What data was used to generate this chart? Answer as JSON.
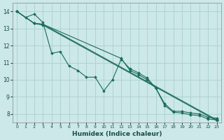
{
  "xlabel": "Humidex (Indice chaleur)",
  "ylabel": "",
  "bg_color": "#cce8e8",
  "grid_color": "#aacfcf",
  "line_color": "#1a6b5a",
  "xlim": [
    -0.5,
    23.5
  ],
  "ylim": [
    7.5,
    14.5
  ],
  "xticks": [
    0,
    1,
    2,
    3,
    4,
    5,
    6,
    7,
    8,
    9,
    10,
    11,
    12,
    13,
    14,
    15,
    16,
    17,
    18,
    19,
    20,
    21,
    22,
    23
  ],
  "yticks": [
    8,
    9,
    10,
    11,
    12,
    13,
    14
  ],
  "lines": [
    {
      "x": [
        0,
        1,
        2,
        3,
        4,
        5,
        6,
        7,
        8,
        9,
        10,
        11,
        12,
        13,
        14,
        15,
        16,
        17,
        18,
        19,
        20,
        21,
        22,
        23
      ],
      "y": [
        14.0,
        13.65,
        13.85,
        13.35,
        11.55,
        11.65,
        10.8,
        10.55,
        10.15,
        10.15,
        9.35,
        10.0,
        11.2,
        10.65,
        10.4,
        10.1,
        9.5,
        8.6,
        8.15,
        8.15,
        8.05,
        8.0,
        7.8,
        7.75
      ]
    },
    {
      "x": [
        0,
        2,
        3,
        23
      ],
      "y": [
        14.0,
        13.3,
        13.25,
        7.65
      ]
    },
    {
      "x": [
        0,
        2,
        3,
        23
      ],
      "y": [
        14.0,
        13.3,
        13.2,
        7.6
      ]
    },
    {
      "x": [
        0,
        2,
        3,
        12,
        13,
        14,
        15,
        16,
        17,
        18,
        19,
        20,
        21,
        22,
        23
      ],
      "y": [
        14.0,
        13.3,
        13.25,
        11.25,
        10.55,
        10.3,
        10.0,
        9.5,
        8.5,
        8.1,
        8.05,
        7.95,
        7.9,
        7.7,
        7.65
      ]
    }
  ]
}
